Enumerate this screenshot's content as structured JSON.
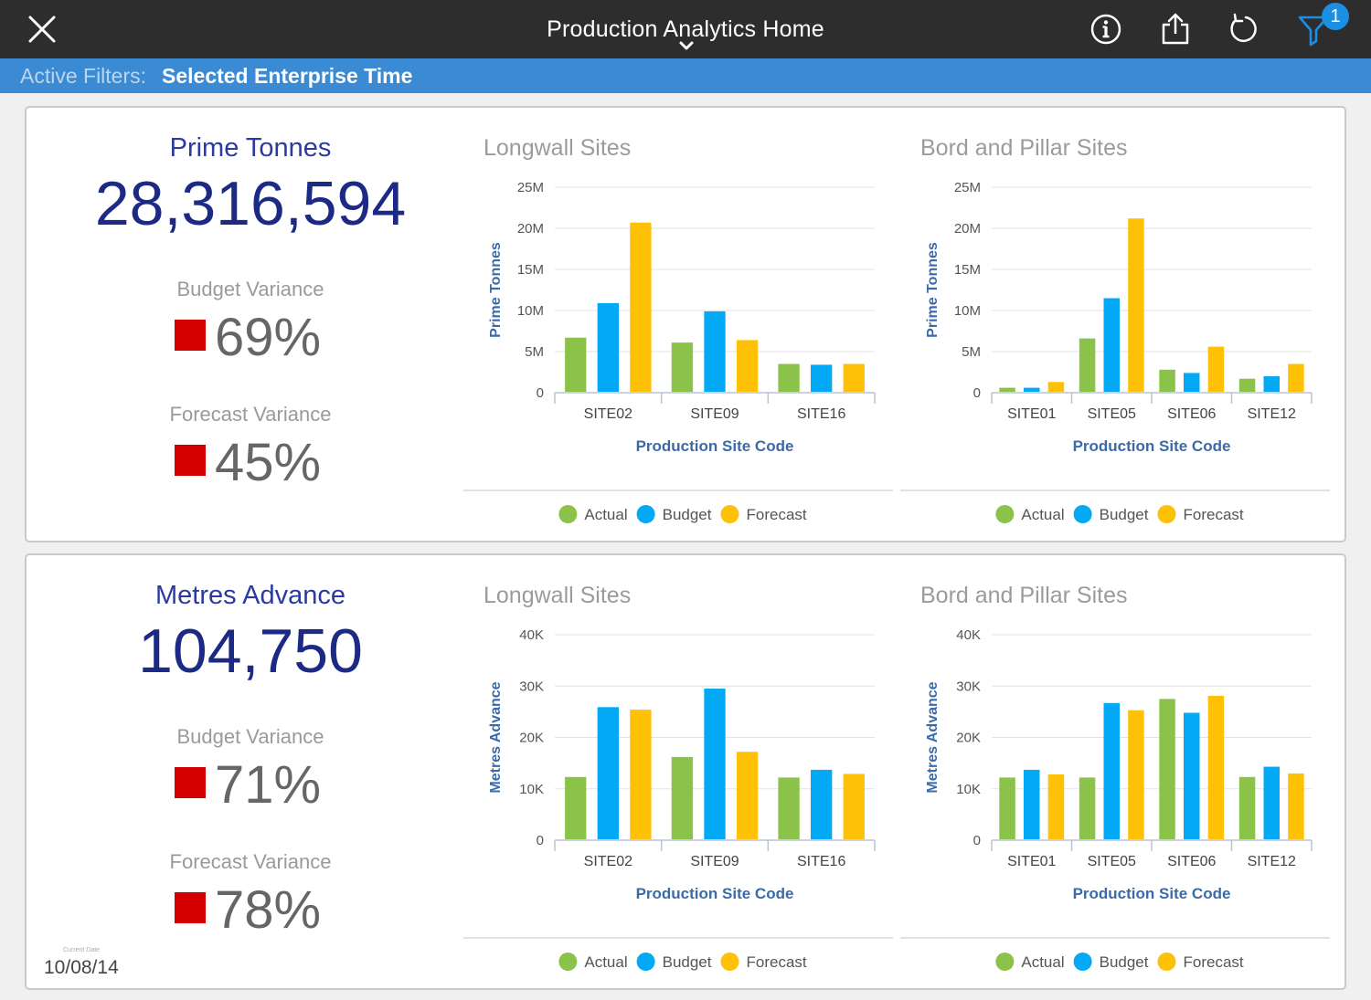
{
  "header": {
    "title": "Production Analytics Home",
    "filter_badge": "1"
  },
  "filters": {
    "label": "Active Filters:",
    "value": "Selected Enterprise Time"
  },
  "panels": [
    {
      "kpi": {
        "name": "Prime Tonnes",
        "value": "28,316,594",
        "budget_label": "Budget Variance",
        "budget_value": "69%",
        "forecast_label": "Forecast Variance",
        "forecast_value": "45%"
      }
    },
    {
      "kpi": {
        "name": "Metres Advance",
        "value": "104,750",
        "budget_label": "Budget Variance",
        "budget_value": "71%",
        "forecast_label": "Forecast Variance",
        "forecast_value": "78%"
      },
      "date_label": "Current Date",
      "date_value": "10/08/14"
    }
  ],
  "colors": {
    "actual": "#8bc34a",
    "budget": "#03a9f4",
    "forecast": "#ffc107",
    "status_red": "#d40000"
  },
  "chart_data": [
    {
      "type": "bar",
      "title": "Longwall Sites",
      "xlabel": "Production Site Code",
      "ylabel": "Prime Tonnes",
      "categories": [
        "SITE02",
        "SITE09",
        "SITE16"
      ],
      "series": [
        {
          "name": "Actual",
          "values": [
            6700000,
            6100000,
            3500000
          ]
        },
        {
          "name": "Budget",
          "values": [
            10900000,
            9900000,
            3400000
          ]
        },
        {
          "name": "Forecast",
          "values": [
            20700000,
            6400000,
            3500000
          ]
        }
      ],
      "ylim": [
        0,
        25000000
      ],
      "yticks": [
        "0",
        "5M",
        "10M",
        "15M",
        "20M",
        "25M"
      ],
      "legend": "bottom"
    },
    {
      "type": "bar",
      "title": "Bord and Pillar Sites",
      "xlabel": "Production Site Code",
      "ylabel": "Prime Tonnes",
      "categories": [
        "SITE01",
        "SITE05",
        "SITE06",
        "SITE12"
      ],
      "series": [
        {
          "name": "Actual",
          "values": [
            600000,
            6600000,
            2800000,
            1700000
          ]
        },
        {
          "name": "Budget",
          "values": [
            600000,
            11500000,
            2400000,
            2000000
          ]
        },
        {
          "name": "Forecast",
          "values": [
            1300000,
            21200000,
            5600000,
            3500000
          ]
        }
      ],
      "ylim": [
        0,
        25000000
      ],
      "yticks": [
        "0",
        "5M",
        "10M",
        "15M",
        "20M",
        "25M"
      ],
      "legend": "bottom"
    },
    {
      "type": "bar",
      "title": "Longwall Sites",
      "xlabel": "Production Site Code",
      "ylabel": "Metres Advance",
      "categories": [
        "SITE02",
        "SITE09",
        "SITE16"
      ],
      "series": [
        {
          "name": "Actual",
          "values": [
            12300,
            16200,
            12200
          ]
        },
        {
          "name": "Budget",
          "values": [
            25900,
            29500,
            13700
          ]
        },
        {
          "name": "Forecast",
          "values": [
            25400,
            17200,
            12900
          ]
        }
      ],
      "ylim": [
        0,
        40000
      ],
      "yticks": [
        "0",
        "10K",
        "20K",
        "30K",
        "40K"
      ],
      "legend": "bottom"
    },
    {
      "type": "bar",
      "title": "Bord and Pillar Sites",
      "xlabel": "Production Site Code",
      "ylabel": "Metres Advance",
      "categories": [
        "SITE01",
        "SITE05",
        "SITE06",
        "SITE12"
      ],
      "series": [
        {
          "name": "Actual",
          "values": [
            12200,
            12200,
            27500,
            12300
          ]
        },
        {
          "name": "Budget",
          "values": [
            13700,
            26700,
            24800,
            14300
          ]
        },
        {
          "name": "Forecast",
          "values": [
            12800,
            25300,
            28100,
            13000
          ]
        }
      ],
      "ylim": [
        0,
        40000
      ],
      "yticks": [
        "0",
        "10K",
        "20K",
        "30K",
        "40K"
      ],
      "legend": "bottom"
    }
  ]
}
